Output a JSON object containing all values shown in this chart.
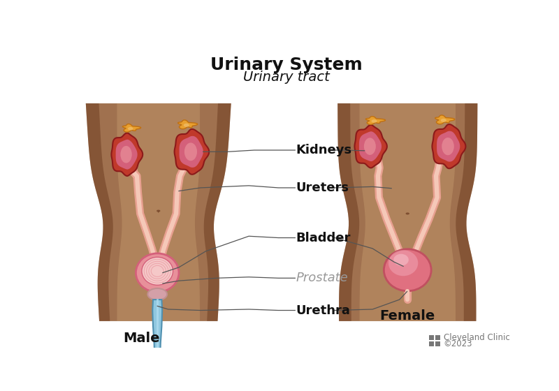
{
  "title": "Urinary System",
  "subtitle": "Urinary tract",
  "labels": {
    "kidneys": "Kidneys",
    "ureters": "Ureters",
    "bladder": "Bladder",
    "prostate": "Prostate",
    "urethra": "Urethra",
    "male": "Male",
    "female": "Female"
  },
  "colors": {
    "background": "#ffffff",
    "skin_base": "#A0714F",
    "skin_dark_edge": "#6B3A1F",
    "skin_center": "#C49A6C",
    "kidney_outer": "#C0392B",
    "kidney_pink": "#D4607A",
    "kidney_inner": "#E8909A",
    "adrenal_orange": "#E8A030",
    "adrenal_light": "#F0C070",
    "ureter_outer": "#E8A090",
    "ureter_inner": "#F5C8B8",
    "bladder_outer": "#D4607A",
    "bladder_pink": "#E8909A",
    "bladder_light": "#F5C8C8",
    "urethra_blue_outer": "#5090B0",
    "urethra_blue_inner": "#90C8E0",
    "prostate_pink": "#D4A0A8",
    "line_color": "#555555",
    "label_color": "#111111",
    "prostate_label_color": "#999999",
    "title_color": "#111111",
    "divider_color": "#dddddd",
    "logo_color": "#777777"
  },
  "figsize": [
    8.0,
    5.6
  ],
  "dpi": 100
}
